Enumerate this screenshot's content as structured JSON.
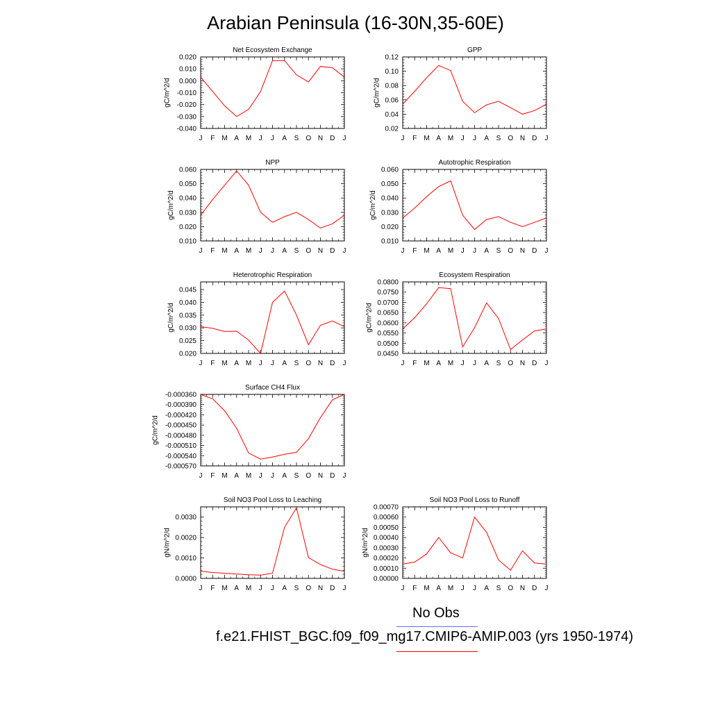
{
  "title": "Arabian Peninsula (16-30N,35-60E)",
  "legend": {
    "obs_label": "No Obs",
    "obs_color": "#6a6aff",
    "run_label": "f.e21.FHIST_BGC.f09_f09_mg17.CMIP6-AMIP.003 (yrs 1950-1974)",
    "run_color": "#ff0000"
  },
  "chart_data": [
    {
      "type": "line",
      "title": "Net Ecosystem Exchange",
      "ylabel": "gC/m^2/d",
      "x": [
        "J",
        "F",
        "M",
        "A",
        "M",
        "J",
        "J",
        "A",
        "S",
        "O",
        "N",
        "D",
        "J"
      ],
      "ylim": [
        -0.04,
        0.02
      ],
      "yticks": [
        "0.020",
        "0.010",
        "0.000",
        "-0.010",
        "-0.020",
        "-0.030",
        "-0.040"
      ],
      "series": [
        {
          "values": [
            0.003,
            -0.009,
            -0.021,
            -0.03,
            -0.024,
            -0.009,
            0.017,
            0.017,
            0.005,
            -0.001,
            0.012,
            0.011,
            0.003
          ]
        }
      ]
    },
    {
      "type": "line",
      "title": "GPP",
      "ylabel": "gC/m^2/d",
      "x": [
        "J",
        "F",
        "M",
        "A",
        "M",
        "J",
        "J",
        "A",
        "S",
        "O",
        "N",
        "D",
        "J"
      ],
      "ylim": [
        0.02,
        0.12
      ],
      "yticks": [
        "0.12",
        "0.10",
        "0.08",
        "0.06",
        "0.04",
        "0.02"
      ],
      "series": [
        {
          "values": [
            0.054,
            0.072,
            0.091,
            0.108,
            0.101,
            0.058,
            0.042,
            0.053,
            0.058,
            0.049,
            0.04,
            0.045,
            0.054
          ]
        }
      ]
    },
    {
      "type": "line",
      "title": "NPP",
      "ylabel": "gC/m^2/d",
      "x": [
        "J",
        "F",
        "M",
        "A",
        "M",
        "J",
        "J",
        "A",
        "S",
        "O",
        "N",
        "D",
        "J"
      ],
      "ylim": [
        0.01,
        0.06
      ],
      "yticks": [
        "0.060",
        "0.050",
        "0.040",
        "0.030",
        "0.020",
        "0.010"
      ],
      "series": [
        {
          "values": [
            0.028,
            0.039,
            0.049,
            0.059,
            0.049,
            0.03,
            0.023,
            0.027,
            0.03,
            0.025,
            0.019,
            0.022,
            0.028
          ]
        }
      ]
    },
    {
      "type": "line",
      "title": "Autotrophic Respiration",
      "ylabel": "gC/m^2/d",
      "x": [
        "J",
        "F",
        "M",
        "A",
        "M",
        "J",
        "J",
        "A",
        "S",
        "O",
        "N",
        "D",
        "J"
      ],
      "ylim": [
        0.01,
        0.06
      ],
      "yticks": [
        "0.060",
        "0.050",
        "0.040",
        "0.030",
        "0.020",
        "0.010"
      ],
      "series": [
        {
          "values": [
            0.026,
            0.033,
            0.041,
            0.048,
            0.052,
            0.028,
            0.018,
            0.025,
            0.027,
            0.023,
            0.02,
            0.023,
            0.026
          ]
        }
      ]
    },
    {
      "type": "line",
      "title": "Heterotrophic Respiration",
      "ylabel": "gC/m^2/d",
      "x": [
        "J",
        "F",
        "M",
        "A",
        "M",
        "J",
        "J",
        "A",
        "S",
        "O",
        "N",
        "D",
        "J"
      ],
      "ylim": [
        0.02,
        0.048
      ],
      "yticks": [
        "0.045",
        "0.040",
        "0.035",
        "0.030",
        "0.025",
        "0.020"
      ],
      "ytickvalues": [
        0.045,
        0.04,
        0.035,
        0.03,
        0.025,
        0.02
      ],
      "series": [
        {
          "values": [
            0.0305,
            0.0298,
            0.0286,
            0.0287,
            0.0252,
            0.02,
            0.04,
            0.0444,
            0.035,
            0.0234,
            0.031,
            0.0327,
            0.0305
          ]
        }
      ]
    },
    {
      "type": "line",
      "title": "Ecosystem Respiration",
      "ylabel": "gC/m^2/d",
      "x": [
        "J",
        "F",
        "M",
        "A",
        "M",
        "J",
        "J",
        "A",
        "S",
        "O",
        "N",
        "D",
        "J"
      ],
      "ylim": [
        0.045,
        0.08
      ],
      "yticks": [
        "0.0800",
        "0.0750",
        "0.0700",
        "0.0650",
        "0.0600",
        "0.0550",
        "0.0500",
        "0.0450"
      ],
      "series": [
        {
          "values": [
            0.057,
            0.0625,
            0.0693,
            0.0772,
            0.0767,
            0.0482,
            0.0576,
            0.0697,
            0.0621,
            0.0469,
            0.0516,
            0.056,
            0.057
          ]
        }
      ]
    },
    {
      "type": "line",
      "title": "Surface CH4 Flux",
      "ylabel": "gC/m^2/d",
      "x": [
        "J",
        "F",
        "M",
        "A",
        "M",
        "J",
        "J",
        "A",
        "S",
        "O",
        "N",
        "D",
        "J"
      ],
      "ylim": [
        -0.00057,
        -0.00036
      ],
      "yticks": [
        "-0.000360",
        "-0.000390",
        "-0.000420",
        "-0.000450",
        "-0.000480",
        "-0.000510",
        "-0.000540",
        "-0.000570"
      ],
      "series": [
        {
          "values": [
            -0.00036,
            -0.000373,
            -0.000408,
            -0.00046,
            -0.000532,
            -0.00055,
            -0.000544,
            -0.000536,
            -0.00053,
            -0.00049,
            -0.000428,
            -0.000376,
            -0.00036
          ]
        }
      ]
    },
    {
      "type": "line",
      "title": "Soil NO3 Pool Loss to Leaching",
      "ylabel": "gN/m^2/d",
      "x": [
        "J",
        "F",
        "M",
        "A",
        "M",
        "J",
        "J",
        "A",
        "S",
        "O",
        "N",
        "D",
        "J"
      ],
      "ylim": [
        0,
        0.0035
      ],
      "yticks": [
        "0.0030",
        "0.0020",
        "0.0010",
        "0.0000"
      ],
      "ytickvalues": [
        0.003,
        0.002,
        0.001,
        0.0
      ],
      "series": [
        {
          "values": [
            0.00035,
            0.00029,
            0.00025,
            0.00021,
            0.00018,
            0.00016,
            0.00025,
            0.0025,
            0.00345,
            0.00102,
            0.00068,
            0.00045,
            0.00035
          ]
        }
      ]
    },
    {
      "type": "line",
      "title": "Soil NO3 Pool Loss to Runoff",
      "ylabel": "gN/m^2/d",
      "x": [
        "J",
        "F",
        "M",
        "A",
        "M",
        "J",
        "J",
        "A",
        "S",
        "O",
        "N",
        "D",
        "J"
      ],
      "ylim": [
        0,
        0.0007
      ],
      "yticks": [
        "0.00070",
        "0.00060",
        "0.00050",
        "0.00040",
        "0.00030",
        "0.00020",
        "0.00010",
        "0.00000"
      ],
      "series": [
        {
          "values": [
            0.00014,
            0.00016,
            0.00024,
            0.0004,
            0.00025,
            0.0002,
            0.0006,
            0.00045,
            0.00018,
            8e-05,
            0.00027,
            0.00015,
            0.00014
          ]
        }
      ]
    }
  ]
}
